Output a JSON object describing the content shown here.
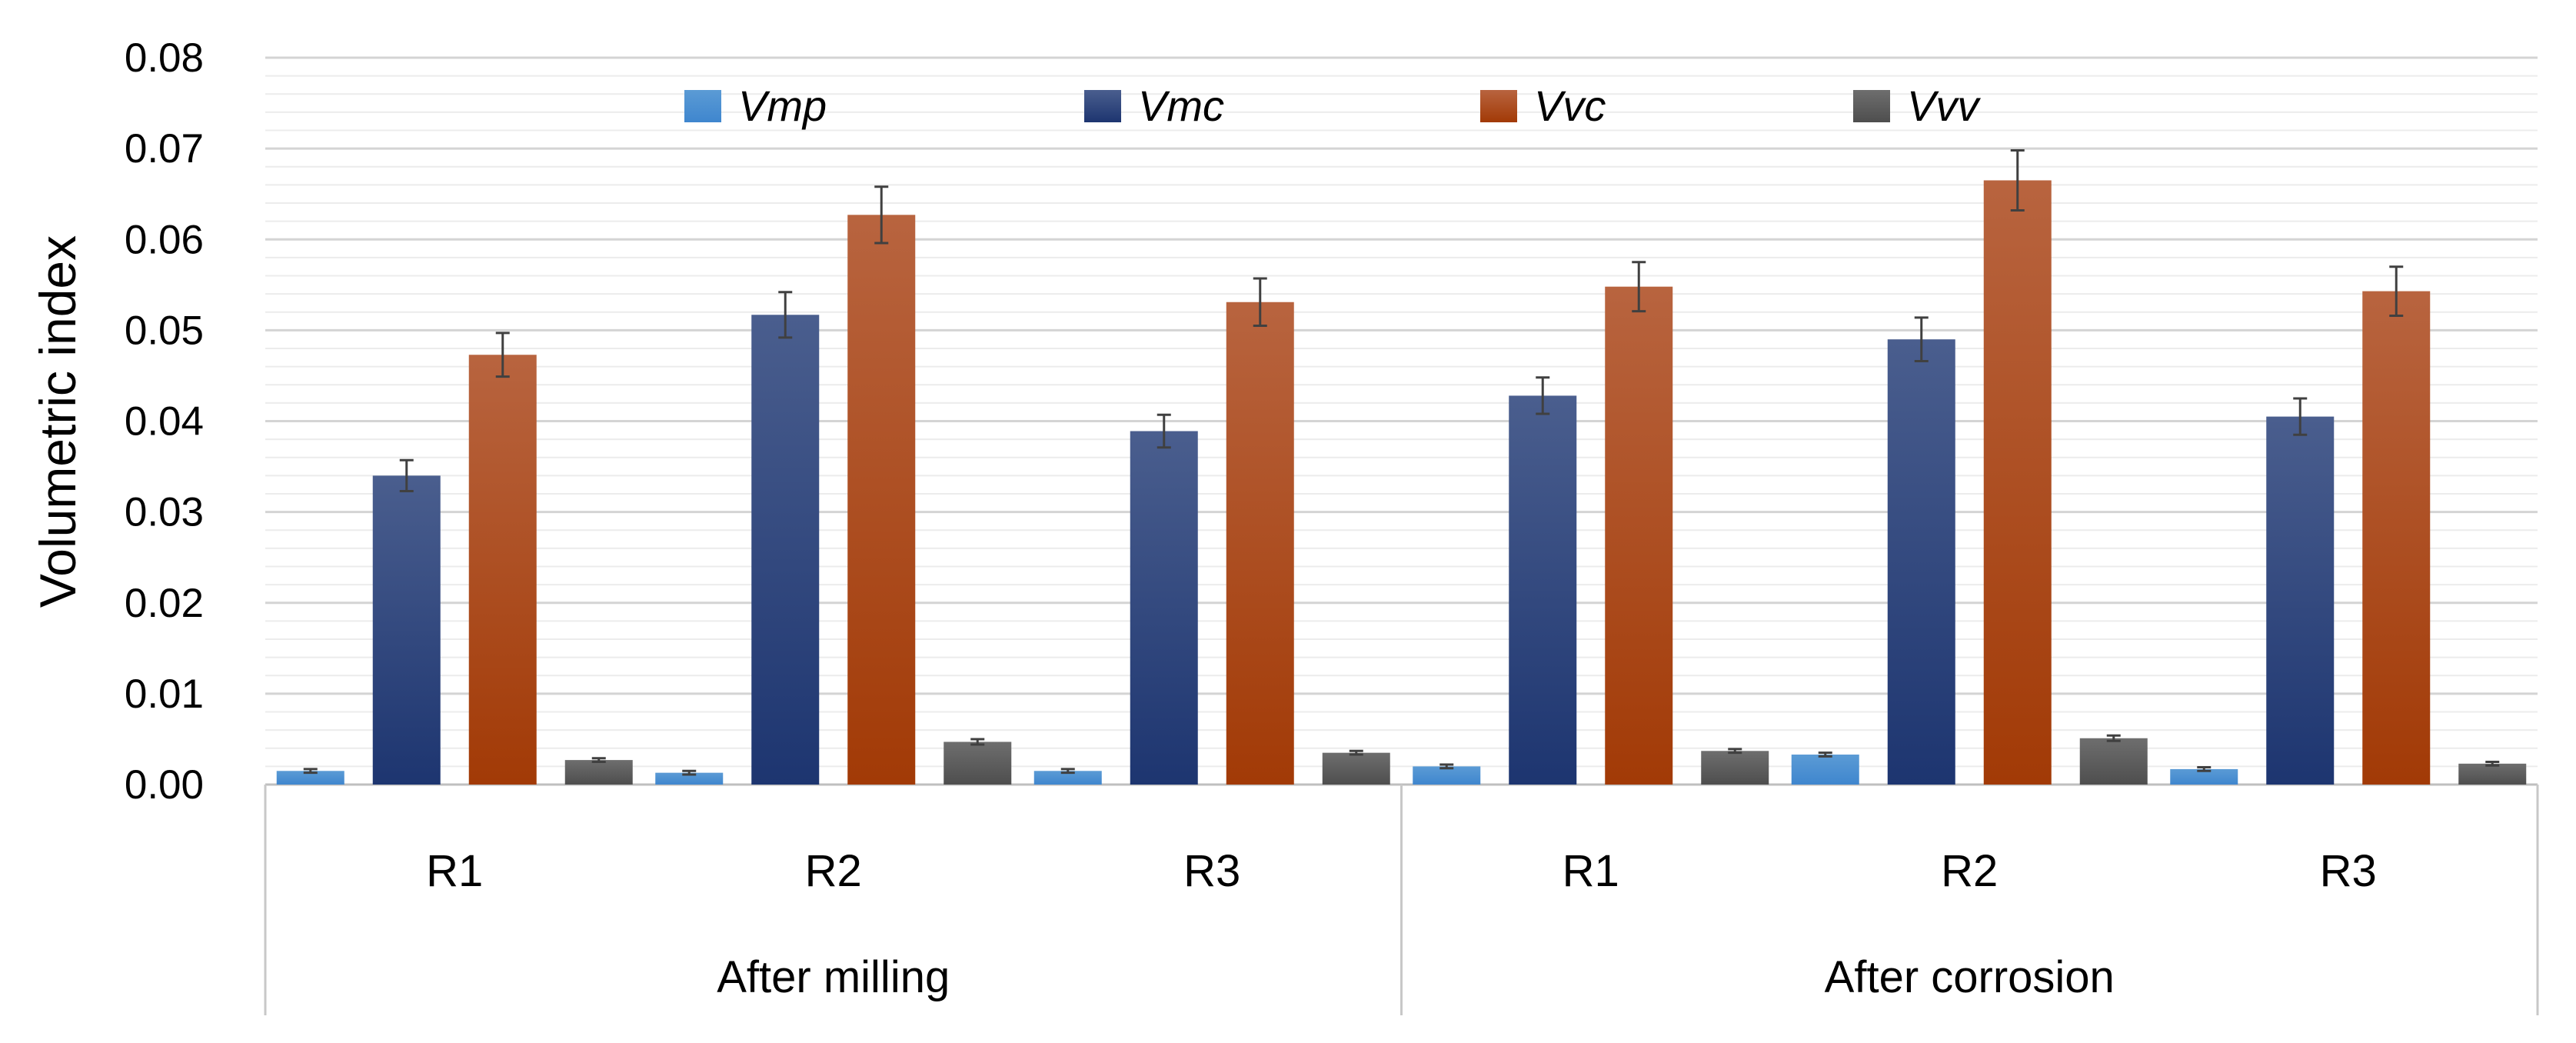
{
  "chart_data": {
    "type": "bar",
    "title": "",
    "ylabel": "Volumetric index",
    "xlabel": "",
    "ylim": [
      0,
      0.08
    ],
    "ytick_labels": [
      "0.00",
      "0.01",
      "0.02",
      "0.03",
      "0.04",
      "0.05",
      "0.06",
      "0.07",
      "0.08"
    ],
    "minor_gridlines": true,
    "legend_position": "top-center",
    "groups": [
      {
        "label": "After milling",
        "categories": [
          "R1",
          "R2",
          "R3"
        ]
      },
      {
        "label": "After corrosion",
        "categories": [
          "R1",
          "R2",
          "R3"
        ]
      }
    ],
    "categories": [
      "R1",
      "R2",
      "R3",
      "R1",
      "R2",
      "R3"
    ],
    "series": [
      {
        "name": "Vmp",
        "color": "#5B9BD5",
        "color_dark": "#3F86CE",
        "values": [
          0.0015,
          0.0013,
          0.0015,
          0.002,
          0.0033,
          0.0017
        ],
        "errors": [
          0.0002,
          0.0002,
          0.0002,
          0.0002,
          0.0002,
          0.0002
        ]
      },
      {
        "name": "Vmc",
        "color": "#4A5E8E",
        "color_dark": "#1D3570",
        "values": [
          0.034,
          0.0517,
          0.0389,
          0.0428,
          0.049,
          0.0405
        ],
        "errors": [
          0.0017,
          0.0025,
          0.0018,
          0.002,
          0.0024,
          0.002
        ]
      },
      {
        "name": "Vvc",
        "color": "#B8643F",
        "color_dark": "#A23A06",
        "values": [
          0.0473,
          0.0627,
          0.0531,
          0.0548,
          0.0665,
          0.0543
        ],
        "errors": [
          0.0024,
          0.0031,
          0.0026,
          0.0027,
          0.0033,
          0.0027
        ]
      },
      {
        "name": "Vvv",
        "color": "#6E6E6E",
        "color_dark": "#4E4E4E",
        "values": [
          0.0027,
          0.0047,
          0.0035,
          0.0037,
          0.0051,
          0.0023
        ],
        "errors": [
          0.0002,
          0.0003,
          0.0002,
          0.0002,
          0.0003,
          0.0002
        ]
      }
    ]
  }
}
